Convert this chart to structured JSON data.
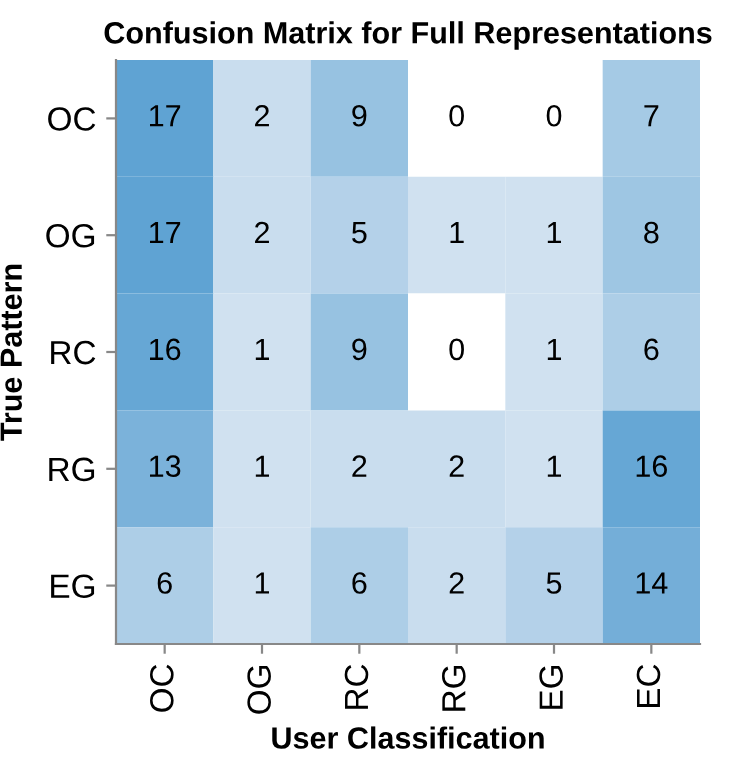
{
  "chart_data": {
    "type": "heatmap",
    "title": "Confusion Matrix for Full Representations",
    "xlabel": "User Classification",
    "ylabel": "True Pattern",
    "categories": [
      "OC",
      "OG",
      "RC",
      "RG",
      "EG",
      "EC"
    ],
    "y_categories": [
      "OC",
      "OG",
      "RC",
      "RG",
      "EG"
    ],
    "cells": [
      [
        17,
        2,
        9,
        0,
        0,
        7
      ],
      [
        17,
        2,
        5,
        1,
        1,
        8
      ],
      [
        16,
        1,
        9,
        0,
        1,
        6
      ],
      [
        13,
        1,
        2,
        2,
        1,
        16
      ],
      [
        6,
        1,
        6,
        2,
        5,
        14
      ]
    ],
    "data_labels": true
  }
}
